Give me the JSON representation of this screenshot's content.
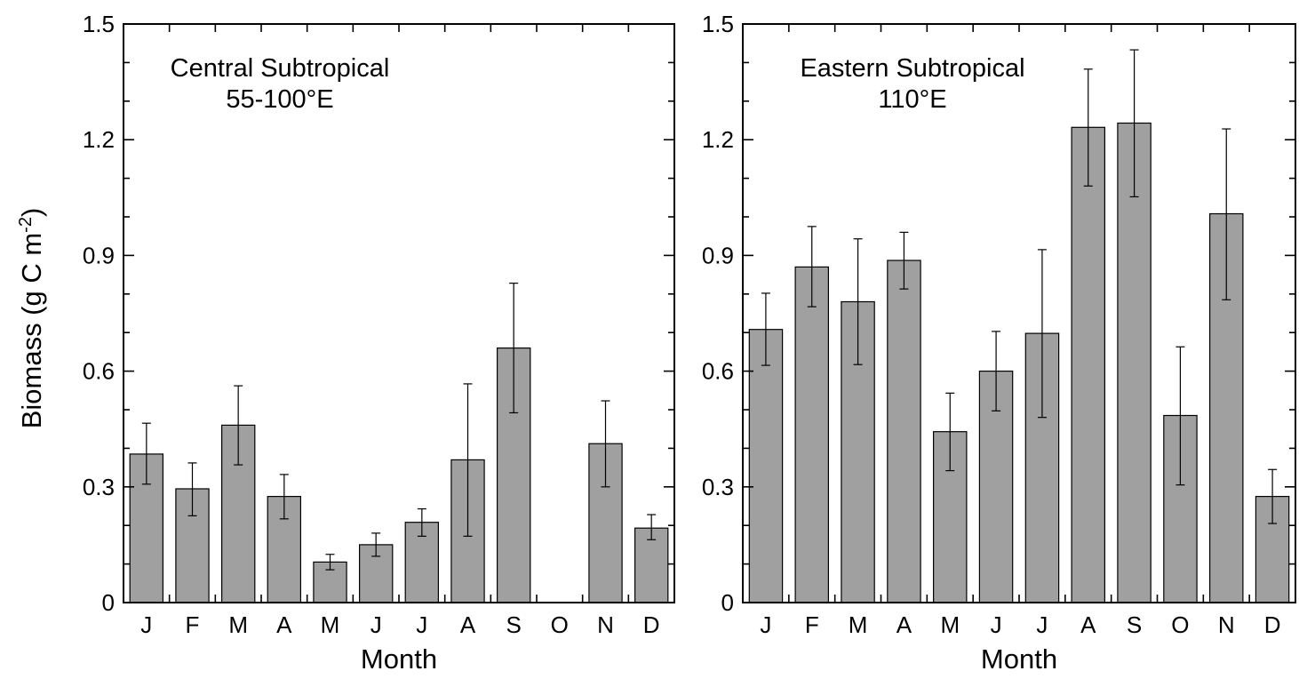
{
  "figure": {
    "ylabel_main": "Biomass (g C m",
    "ylabel_sup": "-2",
    "ylabel_close": ")"
  },
  "chart_data": [
    {
      "type": "bar",
      "title_lines": [
        "Central Subtropical",
        "55-100°E"
      ],
      "xlabel": "Month",
      "categories": [
        "J",
        "F",
        "M",
        "A",
        "M",
        "J",
        "J",
        "A",
        "S",
        "O",
        "N",
        "D"
      ],
      "values": [
        0.385,
        0.295,
        0.46,
        0.275,
        0.105,
        0.15,
        0.208,
        0.37,
        0.66,
        null,
        0.412,
        0.193
      ],
      "error_upper": [
        0.465,
        0.362,
        0.562,
        0.332,
        0.125,
        0.18,
        0.243,
        0.567,
        0.828,
        null,
        0.523,
        0.228
      ],
      "error_lower": [
        0.307,
        0.225,
        0.357,
        0.217,
        0.085,
        0.12,
        0.172,
        0.172,
        0.492,
        null,
        0.3,
        0.163
      ],
      "ylim": [
        0,
        1.5
      ],
      "yticks": [
        "0",
        "0.3",
        "0.6",
        "0.9",
        "1.2",
        "1.5"
      ],
      "ytick_values": [
        0,
        0.3,
        0.6,
        0.9,
        1.2,
        1.5
      ],
      "bar_color": "#a0a0a0"
    },
    {
      "type": "bar",
      "title_lines": [
        "Eastern Subtropical",
        "110°E"
      ],
      "xlabel": "Month",
      "categories": [
        "J",
        "F",
        "M",
        "A",
        "M",
        "J",
        "J",
        "A",
        "S",
        "O",
        "N",
        "D"
      ],
      "values": [
        0.708,
        0.87,
        0.78,
        0.887,
        0.443,
        0.6,
        0.698,
        1.232,
        1.243,
        0.485,
        1.008,
        0.275
      ],
      "error_upper": [
        0.802,
        0.975,
        0.943,
        0.96,
        0.543,
        0.703,
        0.915,
        1.383,
        1.433,
        0.663,
        1.228,
        0.345
      ],
      "error_lower": [
        0.615,
        0.767,
        0.617,
        0.813,
        0.342,
        0.497,
        0.48,
        1.08,
        1.052,
        0.305,
        0.785,
        0.205
      ],
      "ylim": [
        0,
        1.5
      ],
      "yticks": [
        "0",
        "0.3",
        "0.6",
        "0.9",
        "1.2",
        "1.5"
      ],
      "ytick_values": [
        0,
        0.3,
        0.6,
        0.9,
        1.2,
        1.5
      ],
      "bar_color": "#a0a0a0"
    }
  ]
}
